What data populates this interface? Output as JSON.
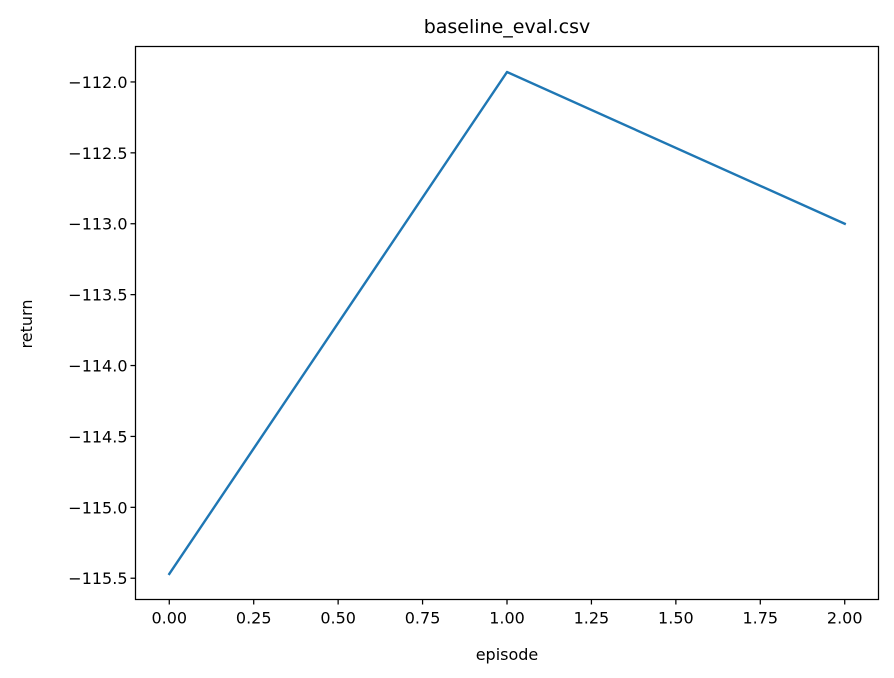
{
  "chart_data": {
    "type": "line",
    "title": "baseline_eval.csv",
    "xlabel": "episode",
    "ylabel": "return",
    "xlim": [
      -0.1,
      2.1
    ],
    "ylim": [
      -115.65,
      -111.75
    ],
    "x_ticks": [
      0.0,
      0.25,
      0.5,
      0.75,
      1.0,
      1.25,
      1.5,
      1.75,
      2.0
    ],
    "x_tick_labels": [
      "0.00",
      "0.25",
      "0.50",
      "0.75",
      "1.00",
      "1.25",
      "1.50",
      "1.75",
      "2.00"
    ],
    "y_ticks": [
      -112.0,
      -112.5,
      -113.0,
      -113.5,
      -114.0,
      -114.5,
      -115.0,
      -115.5
    ],
    "y_tick_labels": [
      "−112.0",
      "−112.5",
      "−113.0",
      "−113.5",
      "−114.0",
      "−114.5",
      "−115.0",
      "−115.5"
    ],
    "grid": false,
    "legend": "none",
    "series": [
      {
        "x": [
          0,
          1,
          2
        ],
        "values": [
          -115.47,
          -111.93,
          -113.0
        ],
        "color": "#1f77b4"
      }
    ]
  }
}
